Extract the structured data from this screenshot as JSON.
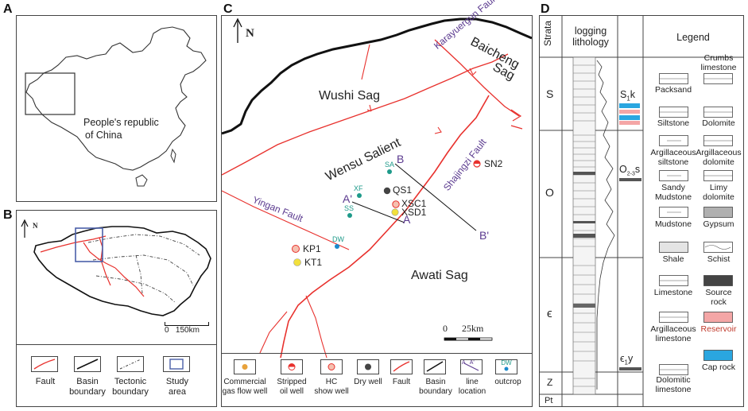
{
  "panels": {
    "A": {
      "label": "A",
      "country_label_line1": "People's republic",
      "country_label_line2": "of China"
    },
    "B": {
      "label": "B",
      "north": "N",
      "scale": "0   150km",
      "legend": [
        "Fault",
        "Basin boundary",
        "Tectonic boundary",
        "Study area"
      ]
    },
    "C": {
      "label": "C",
      "north": "N",
      "regions": {
        "wushi": "Wushi Sag",
        "baicheng_1": "Baicheng",
        "baicheng_2": "Sag",
        "wensu": "Wensu Salient",
        "awati": "Awati Sag"
      },
      "faults": {
        "karayuergun": "Karayuergun Fault",
        "shajingzi": "Shajingzi Fault",
        "yingan": "Yingan Fault"
      },
      "wells": {
        "sn2": "SN2",
        "sa": "SA",
        "xf": "XF",
        "qs1": "QS1",
        "xsc1": "XSC1",
        "xsd1": "XSD1",
        "ss": "SS",
        "dw": "DW",
        "kp1": "KP1",
        "kt1": "KT1"
      },
      "line_labels": {
        "a": "A",
        "a_prime": "A'",
        "b": "B",
        "b_prime": "B'"
      },
      "scale": "0      25km",
      "legend": {
        "gas_1": "Commercial",
        "gas_2": "gas flow well",
        "oil_1": "Stripped",
        "oil_2": "oil well",
        "hc_1": "HC",
        "hc_2": "show well",
        "dry": "Dry well",
        "fault": "Fault",
        "basin_1": "Basin",
        "basin_2": "boundary",
        "line_1": "line",
        "line_2": "location",
        "outcrop": "outcrop",
        "line_icon": "A   A'",
        "dw_icon": "DW"
      }
    },
    "D": {
      "label": "D",
      "headers": {
        "strata": "Strata",
        "logging_1": "logging",
        "logging_2": "lithology",
        "legend": "Legend"
      },
      "strata": [
        "S",
        "O",
        "ϵ",
        "Z",
        "Pt"
      ],
      "formations": {
        "s1k_main": "S",
        "s1k_sub": "1",
        "s1k_end": "k",
        "o23s_main": "O",
        "o23s_sub": "2-3",
        "o23s_end": "s",
        "e1y_main": "ϵ",
        "e1y_sub": "1",
        "e1y_end": "y"
      },
      "legend_left": [
        [
          "Packsand"
        ],
        [
          "Siltstone"
        ],
        [
          "Argillaceous",
          "siltstone"
        ],
        [
          "Sandy",
          "Mudstone"
        ],
        [
          "Mudstone"
        ],
        [
          "Shale"
        ],
        [
          "Limestone"
        ],
        [
          "Argillaceous",
          "limestone"
        ],
        [
          "Dolomitic",
          "limestone"
        ]
      ],
      "legend_right": [
        [
          "Crumbs",
          "limestone"
        ],
        [
          "Dolomite"
        ],
        [
          "Argillaceous",
          "dolomite"
        ],
        [
          "Limy",
          "dolomite"
        ],
        [
          "Gypsum"
        ],
        [
          "Schist"
        ],
        [
          "Source",
          "rock"
        ],
        [
          "Reservoir"
        ],
        [
          "Cap rock"
        ]
      ]
    }
  },
  "colors": {
    "fault": "#e8312d",
    "basin": "#111111",
    "purple_text": "#5b3a8f",
    "teal_text": "#1e9a8a",
    "reservoir": "#f4a6a6",
    "cap_rock": "#2aa6e0",
    "source_rock": "#444444"
  }
}
